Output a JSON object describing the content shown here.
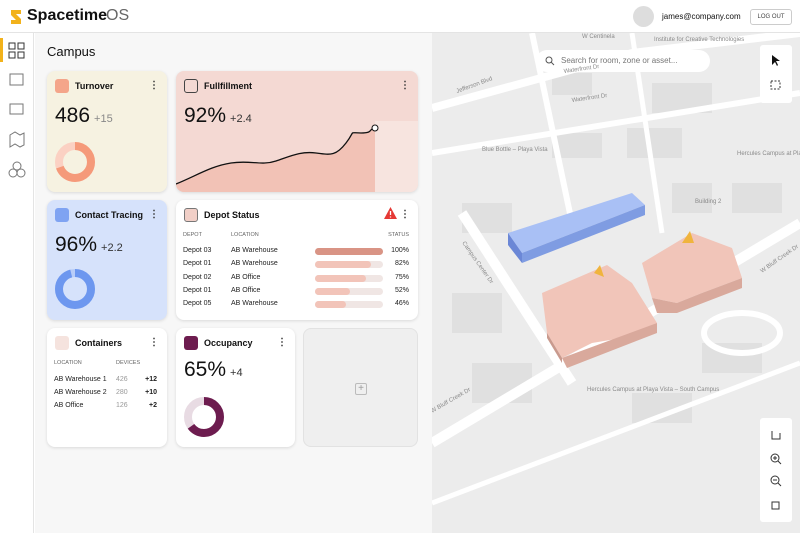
{
  "header": {
    "brand": "Spacetime",
    "brand_suffix": "OS",
    "user": "james@company.com",
    "logout": "LOG OUT"
  },
  "page_title": "Campus",
  "turnover": {
    "title": "Turnover",
    "value": "486",
    "delta": "+15"
  },
  "fulfillment": {
    "title": "Fullfillment",
    "value": "92%",
    "delta": "+2.4"
  },
  "contact": {
    "title": "Contact Tracing",
    "value": 96,
    "value_label": "96%",
    "delta": "+2.2"
  },
  "depot": {
    "title": "Depot Status",
    "columns": [
      "DEPOT",
      "LOCATION",
      "STATUS"
    ],
    "rows": [
      {
        "depot": "Depot 03",
        "location": "AB Warehouse",
        "status": 100,
        "status_label": "100%"
      },
      {
        "depot": "Depot 01",
        "location": "AB Warehouse",
        "status": 82,
        "status_label": "82%"
      },
      {
        "depot": "Depot 02",
        "location": "AB Office",
        "status": 75,
        "status_label": "75%"
      },
      {
        "depot": "Depot 01",
        "location": "AB Office",
        "status": 52,
        "status_label": "52%"
      },
      {
        "depot": "Depot 05",
        "location": "AB Warehouse",
        "status": 46,
        "status_label": "46%"
      }
    ]
  },
  "containers": {
    "title": "Containers",
    "columns": [
      "LOCATION",
      "DEVICES"
    ],
    "rows": [
      {
        "location": "AB Warehouse 1",
        "devices": 426,
        "delta": "+12"
      },
      {
        "location": "AB Warehouse 2",
        "devices": 280,
        "delta": "+10"
      },
      {
        "location": "AB Office",
        "devices": 126,
        "delta": "+2"
      }
    ]
  },
  "occupancy": {
    "title": "Occupancy",
    "value": 65,
    "value_label": "65%",
    "delta": "+4"
  },
  "map": {
    "search": "Search for room, zone or asset...",
    "labels": [
      "W Centinela",
      "Institute for Creative Technologies",
      "Jefferson Blvd",
      "Waterfront Dr",
      "Waterfront Dr",
      "Blue Bottle – Playa Vista",
      "Hercules Campus at Playa Vista – East Campus",
      "Building 2",
      "Campus Center Dr",
      "W Bluff Creek Dr",
      "W Bluff Creek Dr",
      "Hercules Campus at Playa Vista – South Campus"
    ]
  }
}
